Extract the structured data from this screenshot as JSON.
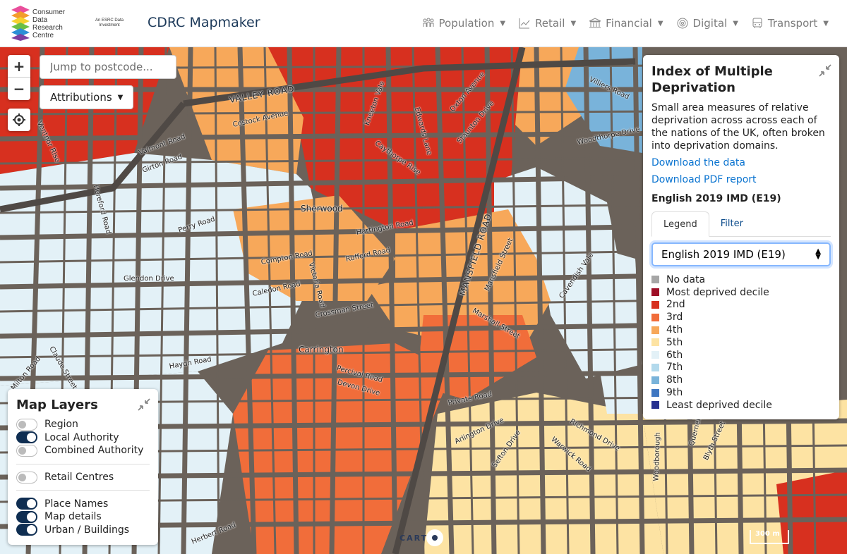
{
  "header": {
    "logo_text": [
      "Consumer",
      "Data",
      "Research",
      "Centre"
    ],
    "esrc_text": [
      "An ESRC Data",
      "Investment"
    ],
    "app_title": "CDRC Mapmaker",
    "nav": [
      {
        "label": "Population",
        "icon": "population-icon"
      },
      {
        "label": "Retail",
        "icon": "retail-chart-icon"
      },
      {
        "label": "Financial",
        "icon": "bank-icon"
      },
      {
        "label": "Digital",
        "icon": "fingerprint-icon"
      },
      {
        "label": "Transport",
        "icon": "bus-icon"
      }
    ]
  },
  "map_controls": {
    "zoom_in": "+",
    "zoom_out": "−",
    "postcode_placeholder": "Jump to postcode...",
    "attributions_label": "Attributions"
  },
  "map_labels": {
    "places": [
      "Sherwood",
      "Carrington"
    ],
    "streets": [
      "VALLEY ROAD",
      "MANSFIELD ROAD",
      "Costock Avenue",
      "Kneeton Vale",
      "Edwards Lane",
      "Oxton Avenue",
      "Staunton Drive",
      "Villiers Road",
      "Woodthorpe Drive",
      "Caythorpe Rise",
      "Valmont Road",
      "Girton Road",
      "Ventnor Rise",
      "Hereford Road",
      "Perry Road",
      "Hartington Road",
      "Compton Road",
      "Rufford Road",
      "Victoria Road",
      "Glendon Drive",
      "Caledon Road",
      "Crossman Street",
      "Mansfield Street",
      "Cavendish Vale",
      "Marshall Street",
      "Haydn Road",
      "Percival Road",
      "Devon Drive",
      "Private Road",
      "Arlington Drive",
      "Sefton Drive",
      "Richmond Drive",
      "Warwick Road",
      "Woodborough",
      "Querneby",
      "Blyth Street",
      "Herbert Road",
      "Claude Street",
      "Milton Road"
    ]
  },
  "imd_panel": {
    "title": "Index of Multiple Deprivation",
    "description": "Small area measures of relative deprivation across across each of the nations of the UK, often broken into deprivation domains.",
    "download_data": "Download the data",
    "download_pdf": "Download PDF report",
    "dataset_heading": "English 2019 IMD (E19)",
    "tabs": [
      "Legend",
      "Filter"
    ],
    "select_value": "English 2019 IMD (E19)",
    "legend": [
      {
        "label": "No data",
        "color": "#a6a6a6"
      },
      {
        "label": "Most deprived decile",
        "color": "#9e0f27"
      },
      {
        "label": "2nd",
        "color": "#d7301f"
      },
      {
        "label": "3rd",
        "color": "#f16d3a"
      },
      {
        "label": "4th",
        "color": "#f7a85a"
      },
      {
        "label": "5th",
        "color": "#fde3a3"
      },
      {
        "label": "6th",
        "color": "#e3f1f7"
      },
      {
        "label": "7th",
        "color": "#b2d9ec"
      },
      {
        "label": "8th",
        "color": "#79b3da"
      },
      {
        "label": "9th",
        "color": "#3f77c2"
      },
      {
        "label": "Least deprived decile",
        "color": "#27318f"
      }
    ]
  },
  "layers_panel": {
    "title": "Map Layers",
    "groups": [
      [
        {
          "label": "Region",
          "on": false
        },
        {
          "label": "Local Authority",
          "on": true
        },
        {
          "label": "Combined Authority",
          "on": false
        }
      ],
      [
        {
          "label": "Retail Centres",
          "on": false
        }
      ],
      [
        {
          "label": "Place Names",
          "on": true
        },
        {
          "label": "Map details",
          "on": true
        },
        {
          "label": "Urban / Buildings",
          "on": true
        }
      ]
    ]
  },
  "footer": {
    "carto": "CART",
    "scale": "300 m"
  }
}
